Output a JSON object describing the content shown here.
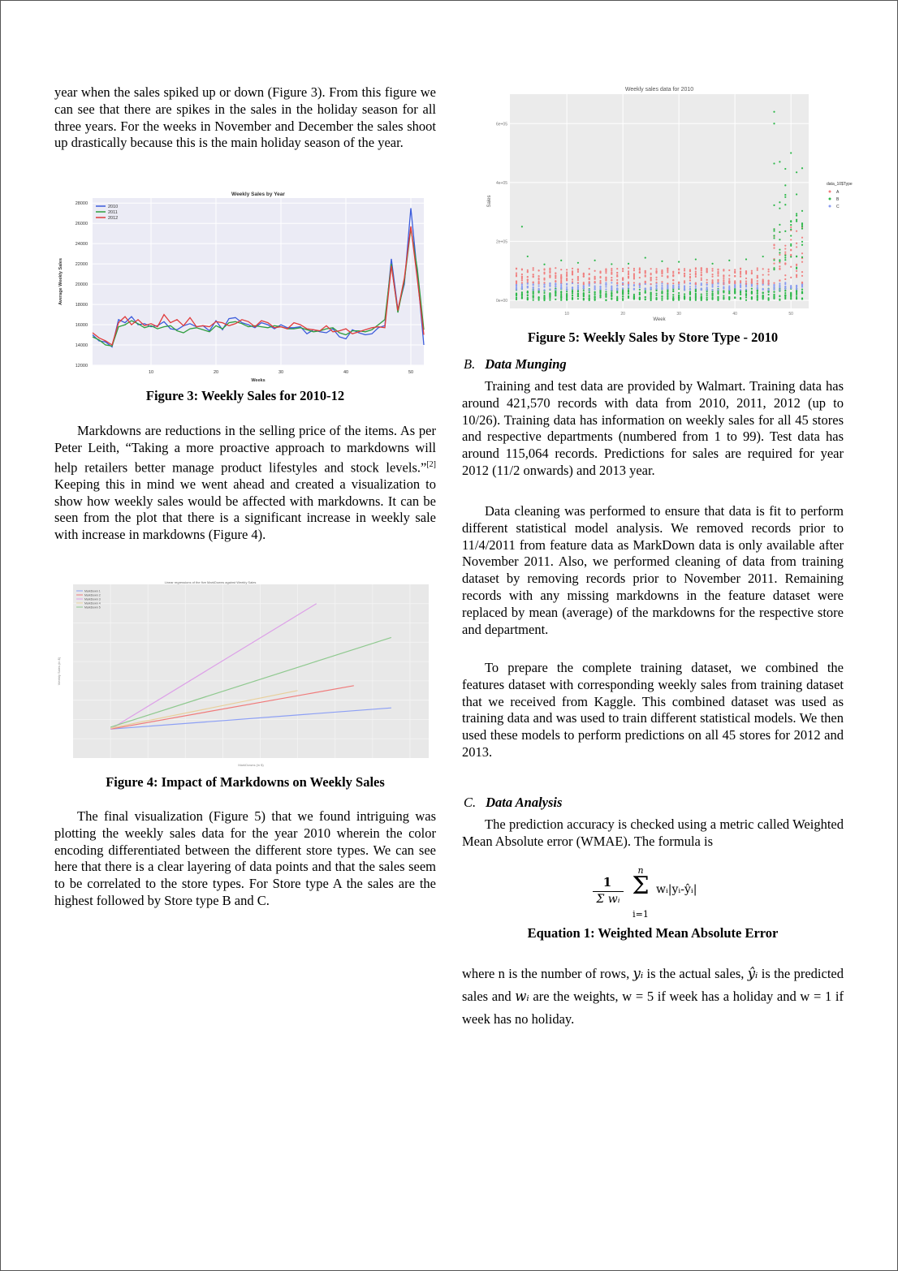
{
  "left_column": {
    "para1": "year when the sales spiked up or down (Figure 3). From this figure we can see that there are spikes in the sales in the holiday season for all three years. For the weeks in November and December the sales shoot up drastically because this is the main holiday season of the year.",
    "fig3_caption": "Figure 3: Weekly Sales for 2010-12",
    "para2_a": "Markdowns are reductions in the selling price of the items. As per Peter Leith, “Taking a more proactive approach to markdowns will help retailers better manage product lifestyles and stock levels.”",
    "para2_ref": "[2]",
    "para2_b": " Keeping this in mind we went ahead and created a visualization to show how weekly sales would be affected with markdowns. It can be seen from the plot that there is a significant increase in weekly sale with increase in markdowns (Figure 4).",
    "fig4_caption": "Figure 4: Impact of Markdowns on Weekly Sales",
    "para3": "The final visualization (Figure 5) that we found intriguing was plotting the weekly sales data for the year 2010 wherein the color encoding differentiated between the different store types. We can see here that there is a clear layering of data points and that the sales seem to be correlated to the store types. For Store type A the sales are the highest followed by Store type B and C."
  },
  "right_column": {
    "fig5_caption": "Figure 5: Weekly Sales by Store Type - 2010",
    "sectionB_letter": "B.",
    "sectionB_title": "Data Munging",
    "paraB1": "Training and test data are provided by Walmart. Training data has around 421,570 records with data from 2010, 2011, 2012 (up to 10/26). Training data has information on weekly sales for all 45 stores and respective departments (numbered from 1 to 99). Test data has around 115,064 records. Predictions for sales are required for year 2012 (11/2 onwards) and 2013 year.",
    "paraB2": "Data cleaning was performed to ensure that data is fit to perform different statistical model analysis. We removed records prior to 11/4/2011 from feature data as MarkDown data is only available after November 2011. Also, we performed cleaning of data from training dataset by removing records prior to November 2011. Remaining records with any missing markdowns in the feature dataset were replaced by mean (average) of the markdowns for the respective store and department.",
    "paraB3": "To prepare the complete training dataset, we combined the features dataset with corresponding weekly sales from training dataset that we received from Kaggle. This combined dataset was used as training data and was used to train different statistical models. We then used these models to perform predictions on all 45 stores for 2012 and 2013.",
    "sectionC_letter": "C.",
    "sectionC_title": "Data Analysis",
    "paraC1": "The prediction accuracy is checked using a metric called Weighted Mean Absolute error (WMAE). The formula is",
    "eq_caption": "Equation 1: Weighted Mean Absolute Error",
    "paraC2_html_parts": {
      "p1": "where n is the number of rows, ",
      "p2": " is the actual sales, ",
      "p3": " is the predicted sales and ",
      "p4": " are the weights, w = 5 if week has a holiday and w = 1 if week has no holiday."
    },
    "symbols": {
      "y_i": "yᵢ",
      "yhat_i": "ŷᵢ",
      "w_i": "wᵢ"
    }
  },
  "equation": {
    "numerator": "1",
    "denominator": "Σ wᵢ",
    "sigma": "Σ",
    "upper": "n",
    "lower": "i=1",
    "summand": "wᵢ|yᵢ-ŷᵢ|"
  },
  "colors": {
    "y2010": "#3b5bdb",
    "y2011": "#2e9e3e",
    "y2012": "#e03b3b",
    "storeA": "#f08080",
    "storeB": "#2db84a",
    "storeC": "#8a9cf0"
  },
  "chart_data": [
    {
      "type": "line",
      "title": "Weekly Sales by Year",
      "xlabel": "Weeks",
      "ylabel": "Average Weekly Sales",
      "xlim": [
        1,
        52
      ],
      "ylim": [
        12000,
        28500
      ],
      "yticks": [
        12000,
        14000,
        16000,
        18000,
        20000,
        22000,
        24000,
        26000,
        28000
      ],
      "xticks": [
        10,
        20,
        30,
        40,
        50
      ],
      "legend": "top-left",
      "series": [
        {
          "name": "2010",
          "x": [
            1,
            2,
            3,
            4,
            5,
            6,
            7,
            8,
            9,
            10,
            11,
            12,
            13,
            14,
            15,
            16,
            17,
            18,
            19,
            20,
            21,
            22,
            23,
            24,
            25,
            26,
            27,
            28,
            29,
            30,
            31,
            32,
            33,
            34,
            35,
            36,
            37,
            38,
            39,
            40,
            41,
            42,
            43,
            44,
            45,
            46,
            47,
            48,
            49,
            50,
            51,
            52
          ],
          "values": [
            15000,
            14400,
            14300,
            13800,
            16500,
            16200,
            16800,
            16000,
            16100,
            15800,
            15900,
            16300,
            15600,
            15500,
            15900,
            16100,
            15800,
            15900,
            15400,
            16400,
            15500,
            16600,
            16700,
            16200,
            16000,
            15700,
            16200,
            16000,
            15600,
            16000,
            15700,
            15700,
            15800,
            15100,
            15500,
            15300,
            15200,
            15600,
            14800,
            14600,
            15500,
            15200,
            15000,
            15100,
            15700,
            15900,
            22500,
            17500,
            20000,
            27500,
            21000,
            14000
          ]
        },
        {
          "name": "2011",
          "x": [
            1,
            2,
            3,
            4,
            5,
            6,
            7,
            8,
            9,
            10,
            11,
            12,
            13,
            14,
            15,
            16,
            17,
            18,
            19,
            20,
            21,
            22,
            23,
            24,
            25,
            26,
            27,
            28,
            29,
            30,
            31,
            32,
            33,
            34,
            35,
            36,
            37,
            38,
            39,
            40,
            41,
            42,
            43,
            44,
            45,
            46,
            47,
            48,
            49,
            50,
            51,
            52
          ],
          "values": [
            14800,
            14500,
            14000,
            13900,
            15800,
            16000,
            16400,
            16100,
            15700,
            15900,
            15600,
            15800,
            15900,
            15400,
            15200,
            15600,
            15700,
            15500,
            15300,
            15900,
            15600,
            16200,
            16300,
            16100,
            15800,
            15900,
            15800,
            15700,
            15900,
            15800,
            15600,
            15600,
            15700,
            15500,
            15300,
            15400,
            15600,
            15700,
            15200,
            15000,
            15400,
            15400,
            15300,
            15500,
            16000,
            16500,
            22000,
            17200,
            20300,
            25500,
            21500,
            15500
          ]
        },
        {
          "name": "2012",
          "x": [
            1,
            2,
            3,
            4,
            5,
            6,
            7,
            8,
            9,
            10,
            11,
            12,
            13,
            14,
            15,
            16,
            17,
            18,
            19,
            20,
            21,
            22,
            23,
            24,
            25,
            26,
            27,
            28,
            29,
            30,
            31,
            32,
            33,
            34,
            35,
            36,
            37,
            38,
            39,
            40,
            41,
            42,
            43,
            44,
            45,
            46,
            47,
            48,
            49,
            50,
            51,
            52
          ],
          "values": [
            15200,
            14700,
            14400,
            14000,
            16200,
            16800,
            16000,
            16500,
            15900,
            16100,
            15800,
            17000,
            16200,
            16500,
            15900,
            16700,
            15800,
            15900,
            15800,
            16300,
            16200,
            15900,
            16100,
            16500,
            16300,
            15800,
            16400,
            16200,
            15700,
            15800,
            15600,
            16200,
            16000,
            15600,
            15500,
            15400,
            15900,
            15300,
            15400,
            15600,
            15100,
            15300,
            15500,
            15700,
            15800,
            15700,
            21800,
            17400,
            20600,
            25700,
            20500,
            15000
          ]
        }
      ]
    },
    {
      "type": "line",
      "title": "Linear regressions of the five MarkDowns against Weekly Sales",
      "xlabel": "MarkDowns (in $)",
      "ylabel": "Weekly Sales (in $)",
      "legend": "top-left",
      "series": [
        {
          "name": "MarkDown 1",
          "x": [
            0,
            75000
          ],
          "values": [
            15000,
            17200
          ]
        },
        {
          "name": "MarkDown 2",
          "x": [
            0,
            65000
          ],
          "values": [
            15000,
            19500
          ]
        },
        {
          "name": "MarkDown 3",
          "x": [
            0,
            55000
          ],
          "values": [
            15000,
            28000
          ]
        },
        {
          "name": "MarkDown 4",
          "x": [
            0,
            50000
          ],
          "values": [
            15100,
            19000
          ]
        },
        {
          "name": "MarkDown 5",
          "x": [
            0,
            75000
          ],
          "values": [
            15200,
            24500
          ]
        }
      ]
    },
    {
      "type": "scatter",
      "title": "Weekly sales data for 2010",
      "xlabel": "Week",
      "ylabel": "Sales",
      "xticks": [
        10,
        20,
        30,
        40,
        50
      ],
      "yticks": [
        "0e+00",
        "2e+05",
        "4e+05",
        "6e+05"
      ],
      "legend_title": "data_10$Type",
      "legend": "right",
      "series": [
        {
          "name": "A",
          "description": "highest layer, mostly 60000-120000"
        },
        {
          "name": "B",
          "description": "middle layer"
        },
        {
          "name": "C",
          "description": "lowest layer"
        }
      ]
    }
  ]
}
